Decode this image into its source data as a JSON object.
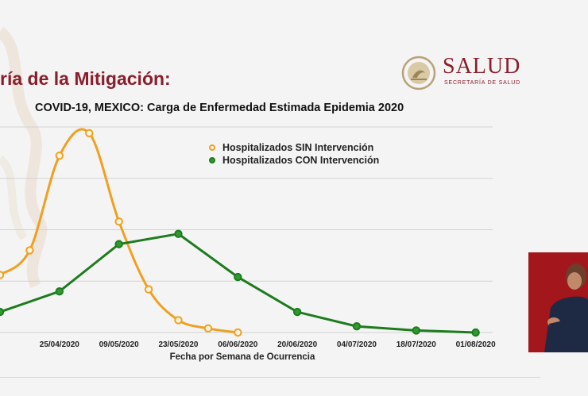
{
  "slide": {
    "title": "ría de la Mitigación:"
  },
  "logo": {
    "word": "SALUD",
    "sub": "SECRETARÍA DE SALUD"
  },
  "colors": {
    "sin": "#f0a020",
    "con": "#1e7b1e",
    "title": "#8a1e2c",
    "interpreter_bg": "#a3161c"
  },
  "chart_data": {
    "type": "line",
    "title": "COVID-19, MEXICO: Carga de Enfermedad Estimada Epidemia 2020",
    "xlabel": "Fecha por Semana de Ocurrencia",
    "ylabel": "",
    "x_ticks": [
      "25/04/2020",
      "09/05/2020",
      "23/05/2020",
      "06/06/2020",
      "20/06/2020",
      "04/07/2020",
      "18/07/2020",
      "01/08/2020"
    ],
    "xlim": [
      "2020-04-11",
      "2020-08-05"
    ],
    "ylim": [
      0,
      100
    ],
    "grid": true,
    "legend_position": "top-center",
    "series": [
      {
        "name": "Hospitalizados SIN Intervención",
        "points": [
          [
            "2020-04-11",
            28
          ],
          [
            "2020-04-18",
            40
          ],
          [
            "2020-04-25",
            86
          ],
          [
            "2020-05-02",
            97
          ],
          [
            "2020-05-09",
            54
          ],
          [
            "2020-05-16",
            21
          ],
          [
            "2020-05-23",
            6
          ],
          [
            "2020-05-30",
            2
          ],
          [
            "2020-06-06",
            0
          ]
        ]
      },
      {
        "name": "Hospitalizados CON Intervención",
        "points": [
          [
            "2020-04-11",
            10
          ],
          [
            "2020-04-25",
            20
          ],
          [
            "2020-05-09",
            43
          ],
          [
            "2020-05-23",
            48
          ],
          [
            "2020-06-06",
            27
          ],
          [
            "2020-06-20",
            10
          ],
          [
            "2020-07-04",
            3
          ],
          [
            "2020-07-18",
            1
          ],
          [
            "2020-08-01",
            0
          ]
        ]
      }
    ]
  }
}
